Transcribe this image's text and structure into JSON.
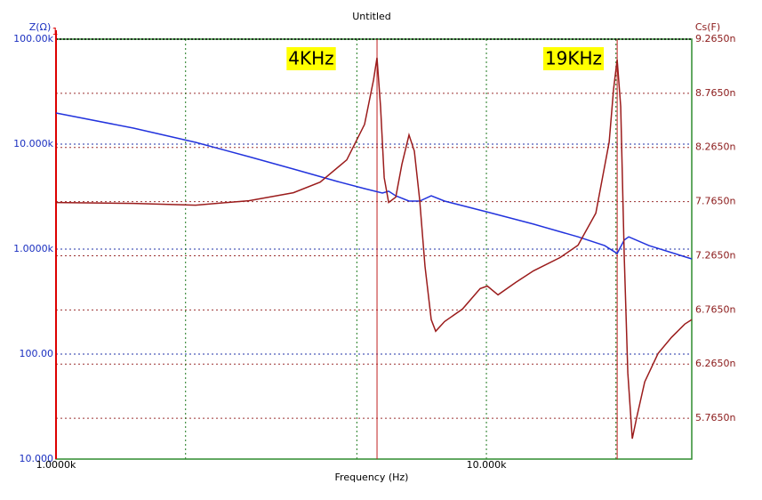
{
  "chart_data": {
    "type": "line",
    "title": "Untitled",
    "x_label": "Frequency (Hz)",
    "y_label": "Z(Ω)",
    "y2_label": "Cs(F)",
    "cursor_label": "1",
    "log_x": true,
    "log_y": true,
    "grid": true,
    "xlim": [
      1000,
      30000
    ],
    "xticks": [
      {
        "value": 1000,
        "label": "1.0000k"
      },
      {
        "value": 10000,
        "label": "10.000k"
      }
    ],
    "xminor": [
      2000,
      5000,
      20000
    ],
    "ylim": [
      10,
      100000
    ],
    "yticks": [
      {
        "value": 100000,
        "label": "100.00k"
      },
      {
        "value": 10000,
        "label": "10.000k"
      },
      {
        "value": 1000,
        "label": "1.0000k"
      },
      {
        "value": 100,
        "label": "100.00"
      },
      {
        "value": 10,
        "label": "10.000"
      }
    ],
    "y2lim": [
      5.388,
      9.265
    ],
    "y2ticks": [
      {
        "value": 9.265,
        "label": "9.2650n"
      },
      {
        "value": 8.765,
        "label": "8.7650n"
      },
      {
        "value": 8.265,
        "label": "8.2650n"
      },
      {
        "value": 7.765,
        "label": "7.7650n"
      },
      {
        "value": 7.265,
        "label": "7.2650n"
      },
      {
        "value": 6.765,
        "label": "6.7650n"
      },
      {
        "value": 6.265,
        "label": "6.2650n"
      },
      {
        "value": 5.765,
        "label": "5.7650n"
      }
    ],
    "cursors": [
      5570,
      20129
    ],
    "annotations": [
      "4KHz",
      "19KHz"
    ],
    "series": [
      {
        "color": "#2233dd",
        "x": [
          1000,
          1513,
          2110,
          2808,
          3562,
          4518,
          5210,
          5732,
          5928,
          6156,
          6610,
          6998,
          7443,
          7993,
          10000,
          12867,
          16327,
          18829,
          20129,
          20905,
          21413,
          23880,
          30000
        ],
        "values": [
          19800,
          14200,
          10400,
          7600,
          5790,
          4400,
          3770,
          3420,
          3560,
          3220,
          2870,
          2870,
          3220,
          2870,
          2270,
          1730,
          1310,
          1080,
          908,
          1220,
          1310,
          1080,
          807
        ]
      },
      {
        "color": "#9b1c1c",
        "axis": "y2",
        "x": [
          1000,
          1513,
          2110,
          2808,
          3562,
          4109,
          4738,
          5210,
          5466,
          5570,
          5677,
          5787,
          5928,
          6156,
          6364,
          6610,
          6802,
          6998,
          7200,
          7443,
          7622,
          7993,
          8795,
          9672,
          10048,
          10639,
          11700,
          12867,
          14842,
          16327,
          17957,
          19282,
          19750,
          20129,
          20512,
          20905,
          21308,
          21820,
          22349,
          23322,
          25045,
          26904,
          28889,
          30000
        ],
        "values": [
          7.757,
          7.749,
          7.732,
          7.773,
          7.847,
          7.945,
          8.15,
          8.478,
          8.888,
          9.093,
          8.642,
          7.986,
          7.757,
          7.806,
          8.109,
          8.38,
          8.232,
          7.781,
          7.167,
          6.675,
          6.568,
          6.658,
          6.773,
          6.962,
          6.986,
          6.904,
          7.019,
          7.126,
          7.249,
          7.363,
          7.658,
          8.314,
          8.806,
          9.076,
          8.642,
          7.249,
          6.183,
          5.576,
          5.773,
          6.101,
          6.363,
          6.511,
          6.634,
          6.675
        ]
      }
    ]
  }
}
